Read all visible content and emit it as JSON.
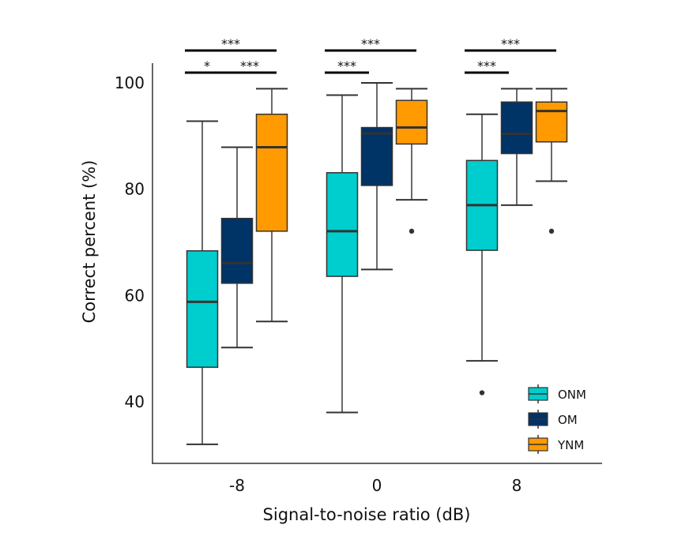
{
  "chart_data": {
    "type": "box",
    "title": "",
    "xlabel": "Signal-to-noise ratio (dB)",
    "ylabel": "Correct percent (%)",
    "ylim": [
      30,
      105
    ],
    "yticks": [
      40,
      60,
      80,
      100
    ],
    "categories": [
      "-8",
      "0",
      "8"
    ],
    "grid": false,
    "legend_position": "bottom-right",
    "series": [
      {
        "name": "ONM",
        "color": "#00CDCD",
        "boxes": [
          {
            "whisker_low": 32.0,
            "q1": 46.5,
            "median": 58.8,
            "q3": 68.4,
            "whisker_high": 92.8,
            "outliers": []
          },
          {
            "whisker_low": 38.0,
            "q1": 63.6,
            "median": 72.1,
            "q3": 83.1,
            "whisker_high": 97.7,
            "outliers": []
          },
          {
            "whisker_low": 47.7,
            "q1": 68.5,
            "median": 77.0,
            "q3": 85.4,
            "whisker_high": 94.1,
            "outliers": [
              41.7
            ]
          }
        ]
      },
      {
        "name": "OM",
        "color": "#003366",
        "boxes": [
          {
            "whisker_low": 50.2,
            "q1": 62.3,
            "median": 66.1,
            "q3": 74.5,
            "whisker_high": 87.9,
            "outliers": []
          },
          {
            "whisker_low": 64.9,
            "q1": 80.7,
            "median": 90.5,
            "q3": 91.6,
            "whisker_high": 100.0,
            "outliers": []
          },
          {
            "whisker_low": 77.0,
            "q1": 86.7,
            "median": 90.4,
            "q3": 96.4,
            "whisker_high": 98.9,
            "outliers": []
          }
        ]
      },
      {
        "name": "YNM",
        "color": "#FF9A00",
        "boxes": [
          {
            "whisker_low": 55.1,
            "q1": 72.1,
            "median": 87.9,
            "q3": 94.1,
            "whisker_high": 98.9,
            "outliers": []
          },
          {
            "whisker_low": 78.0,
            "q1": 88.5,
            "median": 91.6,
            "q3": 96.7,
            "whisker_high": 98.9,
            "outliers": [
              72.1
            ]
          },
          {
            "whisker_low": 81.5,
            "q1": 88.9,
            "median": 94.7,
            "q3": 96.4,
            "whisker_high": 98.9,
            "outliers": [
              72.1
            ]
          }
        ]
      }
    ],
    "significance": [
      {
        "category": "-8",
        "from": "ONM",
        "to": "YNM",
        "label": "***",
        "level": 2
      },
      {
        "category": "-8",
        "from": "ONM",
        "to": "OM",
        "label": "*",
        "level": 1
      },
      {
        "category": "-8",
        "from": "OM",
        "to": "YNM",
        "label": "***",
        "level": 1
      },
      {
        "category": "0",
        "from": "ONM",
        "to": "YNM",
        "label": "***",
        "level": 2
      },
      {
        "category": "0",
        "from": "ONM",
        "to": "OM",
        "label": "***",
        "level": 1
      },
      {
        "category": "8",
        "from": "ONM",
        "to": "YNM",
        "label": "***",
        "level": 2
      },
      {
        "category": "8",
        "from": "ONM",
        "to": "OM",
        "label": "***",
        "level": 1
      }
    ]
  }
}
